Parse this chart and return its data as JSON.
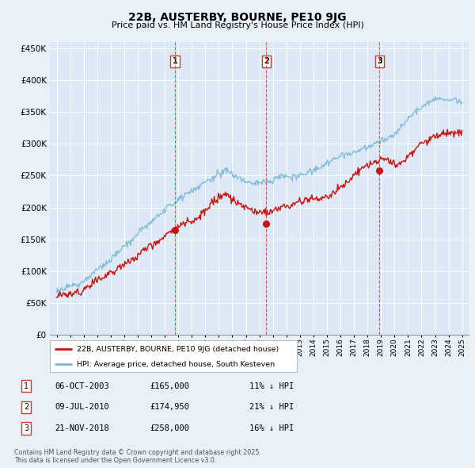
{
  "title": "22B, AUSTERBY, BOURNE, PE10 9JG",
  "subtitle": "Price paid vs. HM Land Registry's House Price Index (HPI)",
  "bg_color": "#e8f0f8",
  "plot_bg_color": "#dce8f5",
  "legend_label_red": "22B, AUSTERBY, BOURNE, PE10 9JG (detached house)",
  "legend_label_blue": "HPI: Average price, detached house, South Kesteven",
  "footer": "Contains HM Land Registry data © Crown copyright and database right 2025.\nThis data is licensed under the Open Government Licence v3.0.",
  "transactions": [
    {
      "num": 1,
      "date": "06-OCT-2003",
      "price": "£165,000",
      "hpi": "11% ↓ HPI",
      "x_year": 2003.77
    },
    {
      "num": 2,
      "date": "09-JUL-2010",
      "price": "£174,950",
      "hpi": "21% ↓ HPI",
      "x_year": 2010.52
    },
    {
      "num": 3,
      "date": "21-NOV-2018",
      "price": "£258,000",
      "hpi": "16% ↓ HPI",
      "x_year": 2018.89
    }
  ],
  "sale_prices": [
    165000,
    174950,
    258000
  ],
  "ylim": [
    0,
    460000
  ],
  "xlim_start": 1994.5,
  "xlim_end": 2025.5,
  "yticks": [
    0,
    50000,
    100000,
    150000,
    200000,
    250000,
    300000,
    350000,
    400000,
    450000
  ],
  "ytick_labels": [
    "£0",
    "£50K",
    "£100K",
    "£150K",
    "£200K",
    "£250K",
    "£300K",
    "£350K",
    "£400K",
    "£450K"
  ],
  "xticks": [
    1995,
    1996,
    1997,
    1998,
    1999,
    2000,
    2001,
    2002,
    2003,
    2004,
    2005,
    2006,
    2007,
    2008,
    2009,
    2010,
    2011,
    2012,
    2013,
    2014,
    2015,
    2016,
    2017,
    2018,
    2019,
    2020,
    2021,
    2022,
    2023,
    2024,
    2025
  ],
  "red_color": "#cc1111",
  "blue_color": "#7ab8d4",
  "grid_color": "#ffffff",
  "vline_color": "#dd3333"
}
